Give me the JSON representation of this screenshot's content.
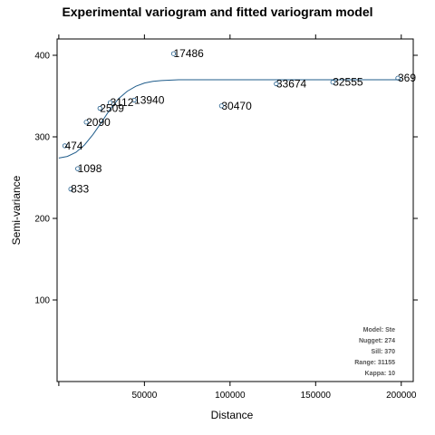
{
  "chart_data": {
    "type": "scatter",
    "title": "Experimental variogram and fitted variogram model",
    "xlabel": "Distance",
    "ylabel": "Semi-variance",
    "xlim": [
      -1000,
      207000
    ],
    "ylim": [
      0,
      420
    ],
    "xticks": [
      {
        "value": 50000,
        "label": "50000"
      },
      {
        "value": 100000,
        "label": "100000"
      },
      {
        "value": 150000,
        "label": "150000"
      },
      {
        "value": 200000,
        "label": "200000"
      }
    ],
    "yticks": [
      {
        "value": 100,
        "label": "100"
      },
      {
        "value": 200,
        "label": "200"
      },
      {
        "value": 300,
        "label": "300"
      },
      {
        "value": 400,
        "label": "400"
      }
    ],
    "points": [
      {
        "x": 3500,
        "y": 289,
        "label": "474"
      },
      {
        "x": 7000,
        "y": 236,
        "label": "833"
      },
      {
        "x": 11000,
        "y": 261,
        "label": "1098"
      },
      {
        "x": 16000,
        "y": 318,
        "label": "2090"
      },
      {
        "x": 24000,
        "y": 335,
        "label": "2509"
      },
      {
        "x": 30000,
        "y": 342,
        "label": "3112"
      },
      {
        "x": 44000,
        "y": 345,
        "label": "13940"
      },
      {
        "x": 67000,
        "y": 402,
        "label": "17486"
      },
      {
        "x": 95000,
        "y": 338,
        "label": "30470"
      },
      {
        "x": 127000,
        "y": 365,
        "label": "33674"
      },
      {
        "x": 160000,
        "y": 367,
        "label": "32555"
      },
      {
        "x": 198000,
        "y": 372,
        "label": "369"
      }
    ],
    "model_curve": {
      "color": "#1f5c8b",
      "points": [
        [
          0,
          274
        ],
        [
          5000,
          276
        ],
        [
          10000,
          281
        ],
        [
          15000,
          290
        ],
        [
          20000,
          303
        ],
        [
          25000,
          318
        ],
        [
          30000,
          334
        ],
        [
          35000,
          347
        ],
        [
          40000,
          356
        ],
        [
          45000,
          362
        ],
        [
          50000,
          366
        ],
        [
          55000,
          368
        ],
        [
          60000,
          369
        ],
        [
          70000,
          370
        ],
        [
          80000,
          370
        ],
        [
          120000,
          370
        ],
        [
          160000,
          370
        ],
        [
          200000,
          370
        ]
      ]
    },
    "model_info": [
      "Model: Ste",
      "Nugget: 274",
      "Sill: 370",
      "Range: 31155",
      "Kappa: 10"
    ]
  }
}
